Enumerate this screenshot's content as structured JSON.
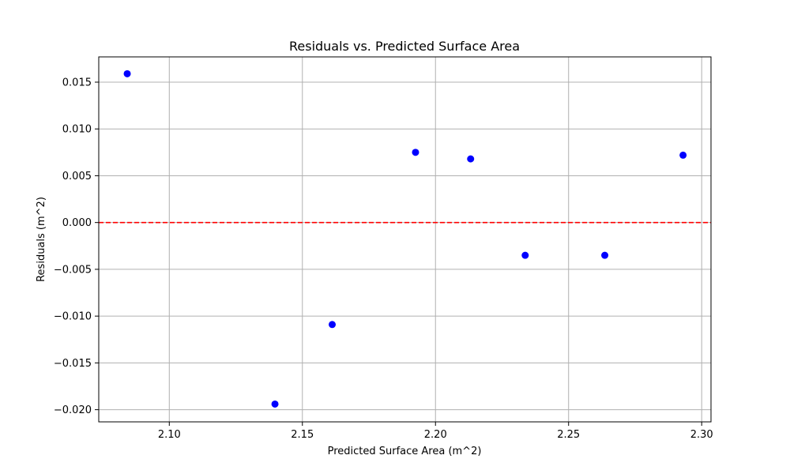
{
  "chart_data": {
    "type": "scatter",
    "title": "Residuals vs. Predicted Surface Area",
    "xlabel": "Predicted Surface Area (m^2)",
    "ylabel": "Residuals (m^2)",
    "xlim": [
      2.0735,
      2.3035
    ],
    "ylim": [
      -0.0213,
      0.0177
    ],
    "x_ticks": [
      2.1,
      2.15,
      2.2,
      2.25,
      2.3
    ],
    "x_tick_labels": [
      "2.10",
      "2.15",
      "2.20",
      "2.25",
      "2.30"
    ],
    "y_ticks": [
      -0.02,
      -0.015,
      -0.01,
      -0.005,
      0.0,
      0.005,
      0.01,
      0.015
    ],
    "y_tick_labels": [
      "−0.020",
      "−0.015",
      "−0.010",
      "−0.005",
      "0.000",
      "0.005",
      "0.010",
      "0.015"
    ],
    "grid": true,
    "point_color": "#0000ff",
    "reference_line": {
      "y": 0,
      "color": "#ff0000",
      "style": "dashed"
    },
    "points": [
      {
        "x": 2.0842,
        "y": 0.0159
      },
      {
        "x": 2.1397,
        "y": -0.0194
      },
      {
        "x": 2.1612,
        "y": -0.0109
      },
      {
        "x": 2.1925,
        "y": 0.0075
      },
      {
        "x": 2.2132,
        "y": 0.0068
      },
      {
        "x": 2.2337,
        "y": -0.0035
      },
      {
        "x": 2.2636,
        "y": -0.0035
      },
      {
        "x": 2.293,
        "y": 0.0072
      }
    ]
  }
}
